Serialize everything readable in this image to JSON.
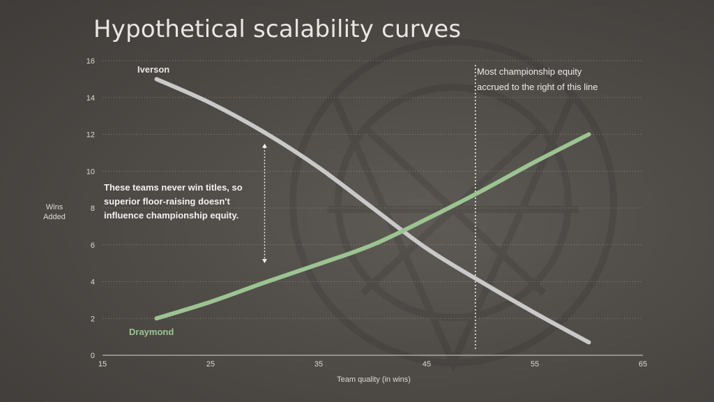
{
  "title": "Hypothetical scalability curves",
  "chart_data": {
    "type": "line",
    "title": "Hypothetical scalability curves",
    "xlabel": "Team quality (in wins)",
    "ylabel": "Wins Added",
    "xlim": [
      15,
      65
    ],
    "ylim": [
      0,
      16
    ],
    "x_ticks": [
      15,
      25,
      35,
      45,
      55,
      65
    ],
    "y_ticks": [
      0,
      2,
      4,
      6,
      8,
      10,
      12,
      14,
      16
    ],
    "grid": "horizontal dotted",
    "series": [
      {
        "name": "Iverson",
        "color": "#c9c9c9",
        "x": [
          20,
          25,
          30,
          35,
          40,
          45,
          50,
          55,
          60
        ],
        "y": [
          15.0,
          13.7,
          12.1,
          10.2,
          8.0,
          5.8,
          4.0,
          2.3,
          0.7
        ]
      },
      {
        "name": "Draymond",
        "color": "#9cc492",
        "x": [
          20,
          25,
          30,
          35,
          40,
          45,
          50,
          55,
          60
        ],
        "y": [
          2.0,
          2.9,
          3.95,
          4.95,
          6.0,
          7.4,
          8.9,
          10.5,
          12.0
        ]
      }
    ],
    "vertical_line": {
      "x": 49.5,
      "style": "dotted"
    },
    "annotations": [
      {
        "lines": [
          "Most championship equity",
          "accrued to the right of this line"
        ]
      },
      {
        "lines": [
          "These teams never win titles, so",
          "superior floor-raising doesn't",
          "influence championship equity."
        ]
      }
    ],
    "double_arrow": {
      "x": 30,
      "y_from": 11.5,
      "y_to": 5.0
    }
  }
}
